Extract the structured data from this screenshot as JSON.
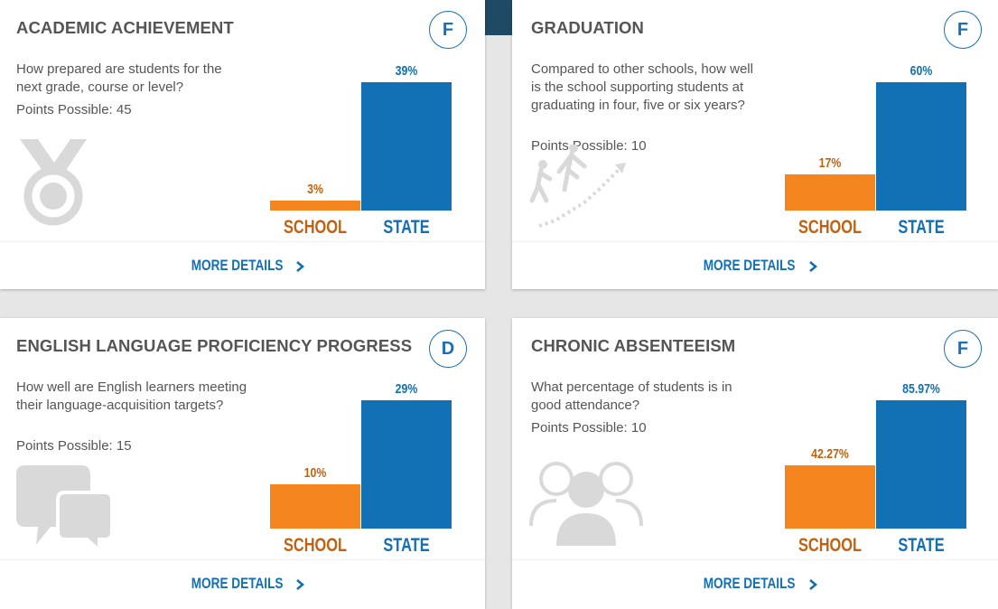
{
  "colors": {
    "school": "#f5861f",
    "state": "#1270b5",
    "grade_ring": "#1a6fb5",
    "text": "#555555"
  },
  "common": {
    "school_label": "SCHOOL",
    "state_label": "STATE",
    "more_details": "MORE DETAILS"
  },
  "cards": [
    {
      "title": "ACADEMIC ACHIEVEMENT",
      "grade": "F",
      "question": "How prepared are students for the next grade, course or level?",
      "points": "Points Possible: 45",
      "icon": "medal-icon",
      "school_value": "3%",
      "state_value": "39%"
    },
    {
      "title": "GRADUATION",
      "grade": "F",
      "question": "Compared to other schools, how well is the school supporting students at graduating in four, five or six years?",
      "points": "Points Possible: 10",
      "icon": "climbing-stairs-icon",
      "school_value": "17%",
      "state_value": "60%"
    },
    {
      "title": "ENGLISH LANGUAGE PROFICIENCY PROGRESS",
      "grade": "D",
      "question": "How well are English learners meeting their language-acquisition targets?",
      "points": "Points Possible: 15",
      "icon": "speech-bubbles-icon",
      "school_value": "10%",
      "state_value": "29%"
    },
    {
      "title": "CHRONIC ABSENTEEISM",
      "grade": "F",
      "question": "What percentage of students is in good attendance?",
      "points": "Points Possible: 10",
      "icon": "people-group-icon",
      "school_value": "42.27%",
      "state_value": "85.97%"
    }
  ],
  "chart_data": [
    {
      "type": "bar",
      "categories": [
        "SCHOOL",
        "STATE"
      ],
      "values": [
        3,
        39
      ],
      "ylim": [
        0,
        39
      ]
    },
    {
      "type": "bar",
      "categories": [
        "SCHOOL",
        "STATE"
      ],
      "values": [
        17,
        60
      ],
      "ylim": [
        0,
        60
      ]
    },
    {
      "type": "bar",
      "categories": [
        "SCHOOL",
        "STATE"
      ],
      "values": [
        10,
        29
      ],
      "ylim": [
        0,
        29
      ]
    },
    {
      "type": "bar",
      "categories": [
        "SCHOOL",
        "STATE"
      ],
      "values": [
        42.27,
        85.97
      ],
      "ylim": [
        0,
        85.97
      ]
    }
  ]
}
